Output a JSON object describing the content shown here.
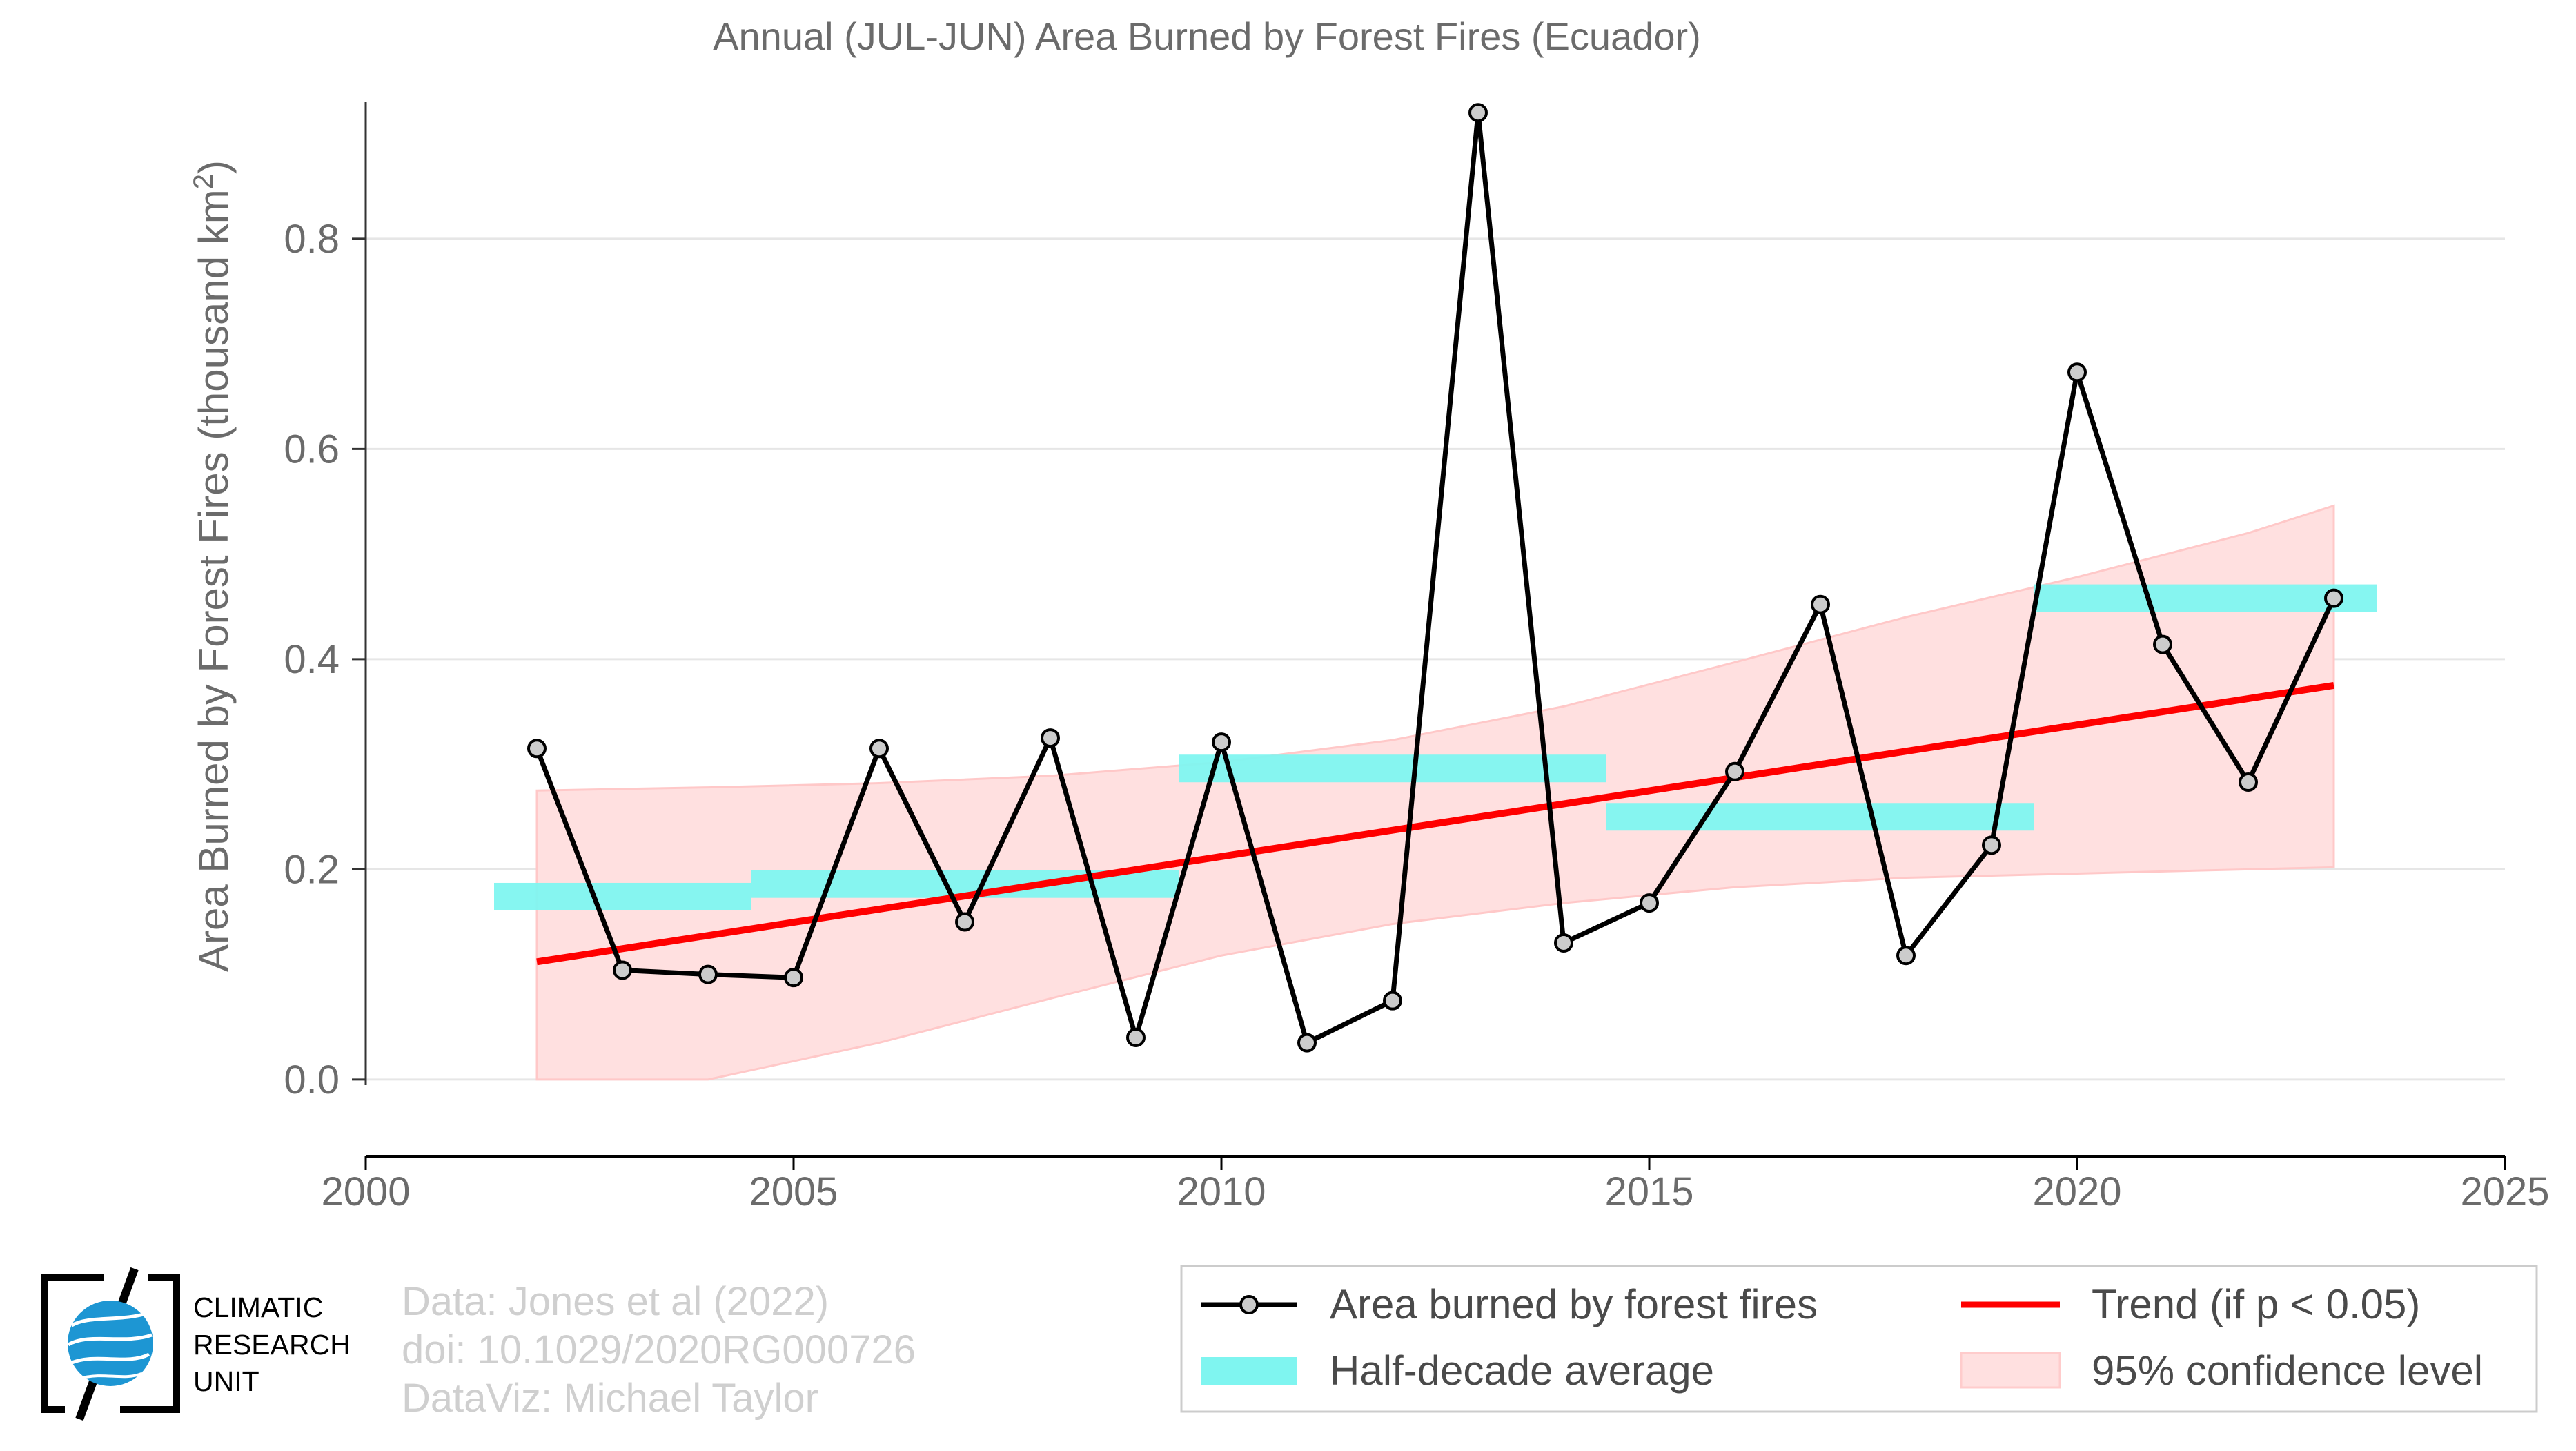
{
  "chart_data": {
    "type": "line",
    "title": "Annual (JUL-JUN) Area Burned by Forest Fires (Ecuador)",
    "xlabel": "",
    "ylabel": "Area Burned by Forest Fires (thousand km",
    "ylabel_sup": "2",
    "ylabel_close": ")",
    "xlim": [
      2000,
      2025
    ],
    "ylim": [
      -0.073,
      0.93
    ],
    "x_ticks": [
      2000,
      2005,
      2010,
      2015,
      2020,
      2025
    ],
    "y_ticks": [
      0.0,
      0.2,
      0.4,
      0.6,
      0.8
    ],
    "x_tick_labels": [
      "2000",
      "2005",
      "2010",
      "2015",
      "2020",
      "2025"
    ],
    "y_tick_labels": [
      "0.0",
      "0.2",
      "0.4",
      "0.6",
      "0.8"
    ],
    "grid": "horizontal",
    "legend_position": "bottom-right",
    "series": [
      {
        "name": "Area burned by forest fires",
        "color": "#000000",
        "marker_fill": "#cccccc",
        "x": [
          2002,
          2003,
          2004,
          2005,
          2006,
          2007,
          2008,
          2009,
          2010,
          2011,
          2012,
          2013,
          2014,
          2015,
          2016,
          2017,
          2018,
          2019,
          2020,
          2021,
          2022,
          2023
        ],
        "y": [
          0.315,
          0.104,
          0.1,
          0.097,
          0.315,
          0.15,
          0.325,
          0.04,
          0.321,
          0.035,
          0.075,
          0.92,
          0.13,
          0.168,
          0.293,
          0.452,
          0.118,
          0.223,
          0.673,
          0.414,
          0.283,
          0.458
        ]
      }
    ],
    "half_decade_average": {
      "name": "Half-decade average",
      "color": "#7ff5f0",
      "segments": [
        {
          "x0": 2001.5,
          "x1": 2004.5,
          "y": 0.174
        },
        {
          "x0": 2004.5,
          "x1": 2009.5,
          "y": 0.186
        },
        {
          "x0": 2009.5,
          "x1": 2014.5,
          "y": 0.296
        },
        {
          "x0": 2014.5,
          "x1": 2019.5,
          "y": 0.25
        },
        {
          "x0": 2019.5,
          "x1": 2023.5,
          "y": 0.458
        }
      ]
    },
    "trend": {
      "name": "Trend (if p < 0.05)",
      "color": "#ff0000",
      "x": [
        2002,
        2023
      ],
      "y": [
        0.112,
        0.375
      ]
    },
    "confidence_band": {
      "name": "95% confidence level",
      "color": "#ffd6d6",
      "x": [
        2002,
        2004,
        2006,
        2008,
        2010,
        2012,
        2014,
        2016,
        2018,
        2020,
        2022,
        2023
      ],
      "upper": [
        0.275,
        0.278,
        0.282,
        0.289,
        0.302,
        0.323,
        0.355,
        0.397,
        0.44,
        0.478,
        0.52,
        0.546
      ],
      "lower": [
        0.0,
        0.0,
        0.035,
        0.077,
        0.118,
        0.148,
        0.168,
        0.183,
        0.192,
        0.196,
        0.2,
        0.202
      ]
    }
  },
  "credits": {
    "line1": "Data: Jones et al (2022)",
    "line2": "doi: 10.1029/2020RG000726",
    "line3": "DataViz: Michael Taylor"
  },
  "logo": {
    "line1": "CLIMATIC",
    "line2": "RESEARCH",
    "line3": "UNIT"
  },
  "legend": {
    "items": [
      {
        "label": "Area burned by forest fires",
        "kind": "line-marker"
      },
      {
        "label": "Trend (if p < 0.05)",
        "kind": "line"
      },
      {
        "label": "Half-decade average",
        "kind": "bar"
      },
      {
        "label": "95% confidence level",
        "kind": "patch"
      }
    ]
  }
}
